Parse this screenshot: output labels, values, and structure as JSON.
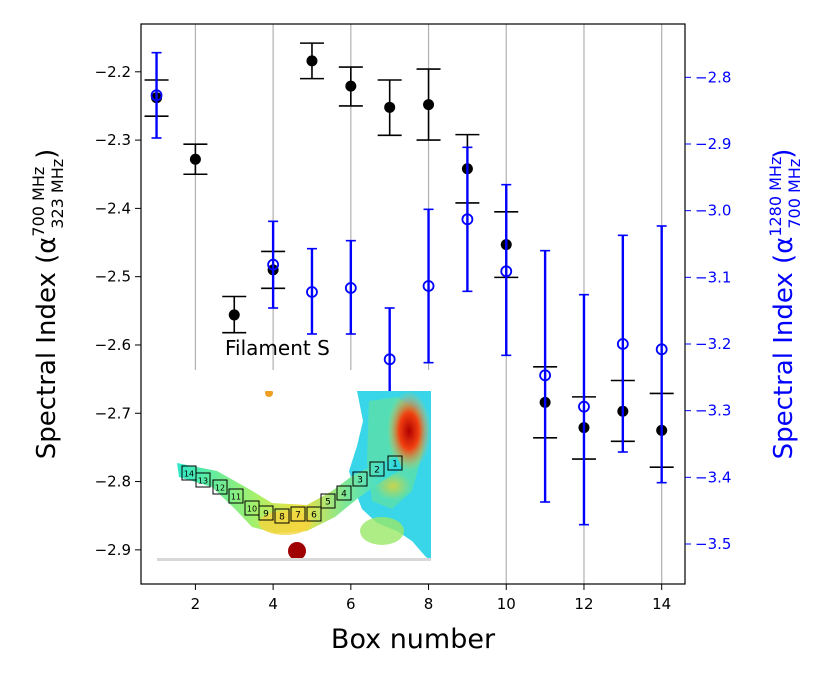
{
  "chart_data": {
    "type": "scatter",
    "xlabel": "Box number",
    "ylabel_left": "Spectral Index (α",
    "ylabel_left_sup": "700 MHz",
    "ylabel_left_sub": "323 MHz",
    "ylabel_right": "Spectral Index (α",
    "ylabel_right_sup": "1280 MHz",
    "ylabel_right_sub": "700 MHz",
    "ylabel_close": ")",
    "xlim": [
      0.6,
      14.6
    ],
    "ylim_left": [
      -2.95,
      -2.13
    ],
    "ylim_right": [
      -3.56,
      -2.72
    ],
    "x_ticks": [
      2,
      4,
      6,
      8,
      10,
      12,
      14
    ],
    "y_ticks_left": [
      -2.2,
      -2.3,
      -2.4,
      -2.5,
      -2.6,
      -2.7,
      -2.8,
      -2.9
    ],
    "y_ticks_right": [
      -2.8,
      -2.9,
      -3.0,
      -3.1,
      -3.2,
      -3.3,
      -3.4,
      -3.5
    ],
    "grid_x": [
      2,
      4,
      6,
      8,
      10,
      12,
      14
    ],
    "colors": {
      "left_series": "#000000",
      "right_series": "#0000ff",
      "grid": "#b0b0b0"
    },
    "series": [
      {
        "axis": "left",
        "marker": "filled-circle",
        "x": [
          1,
          2,
          3,
          4,
          5,
          6,
          7,
          8,
          9,
          10,
          11,
          12,
          13,
          14
        ],
        "y": [
          -2.238,
          -2.328,
          -2.556,
          -2.49,
          -2.184,
          -2.221,
          -2.252,
          -2.248,
          -2.342,
          -2.453,
          -2.684,
          -2.721,
          -2.697,
          -2.725
        ],
        "err_upper": [
          -2.212,
          -2.306,
          -2.529,
          -2.463,
          -2.158,
          -2.193,
          -2.212,
          -2.196,
          -2.292,
          -2.405,
          -2.632,
          -2.676,
          -2.652,
          -2.671
        ],
        "err_lower": [
          -2.265,
          -2.35,
          -2.582,
          -2.517,
          -2.21,
          -2.25,
          -2.293,
          -2.3,
          -2.392,
          -2.501,
          -2.736,
          -2.767,
          -2.741,
          -2.779
        ]
      },
      {
        "axis": "right",
        "marker": "open-circle",
        "x": [
          1,
          2,
          3,
          4,
          5,
          6,
          7,
          8,
          9,
          10,
          11,
          12,
          13,
          14
        ],
        "y": [
          -2.827,
          null,
          null,
          -3.081,
          -3.122,
          -3.116,
          -3.223,
          -3.113,
          -3.013,
          -3.091,
          -3.247,
          -3.294,
          -3.2,
          -3.208
        ],
        "err_upper": [
          -2.763,
          null,
          null,
          -3.016,
          -3.057,
          -3.045,
          -3.146,
          -2.998,
          -2.905,
          -2.961,
          -3.06,
          -3.126,
          -3.037,
          -3.023
        ],
        "err_lower": [
          -2.891,
          null,
          null,
          -3.146,
          -3.185,
          -3.185,
          -3.298,
          -3.228,
          -3.121,
          -3.217,
          -3.437,
          -3.471,
          -3.362,
          -3.408
        ]
      }
    ]
  },
  "inset": {
    "title": "Filament S",
    "boxes": [
      "1",
      "2",
      "3",
      "4",
      "5",
      "6",
      "7",
      "8",
      "9",
      "10",
      "11",
      "12",
      "13",
      "14"
    ]
  }
}
